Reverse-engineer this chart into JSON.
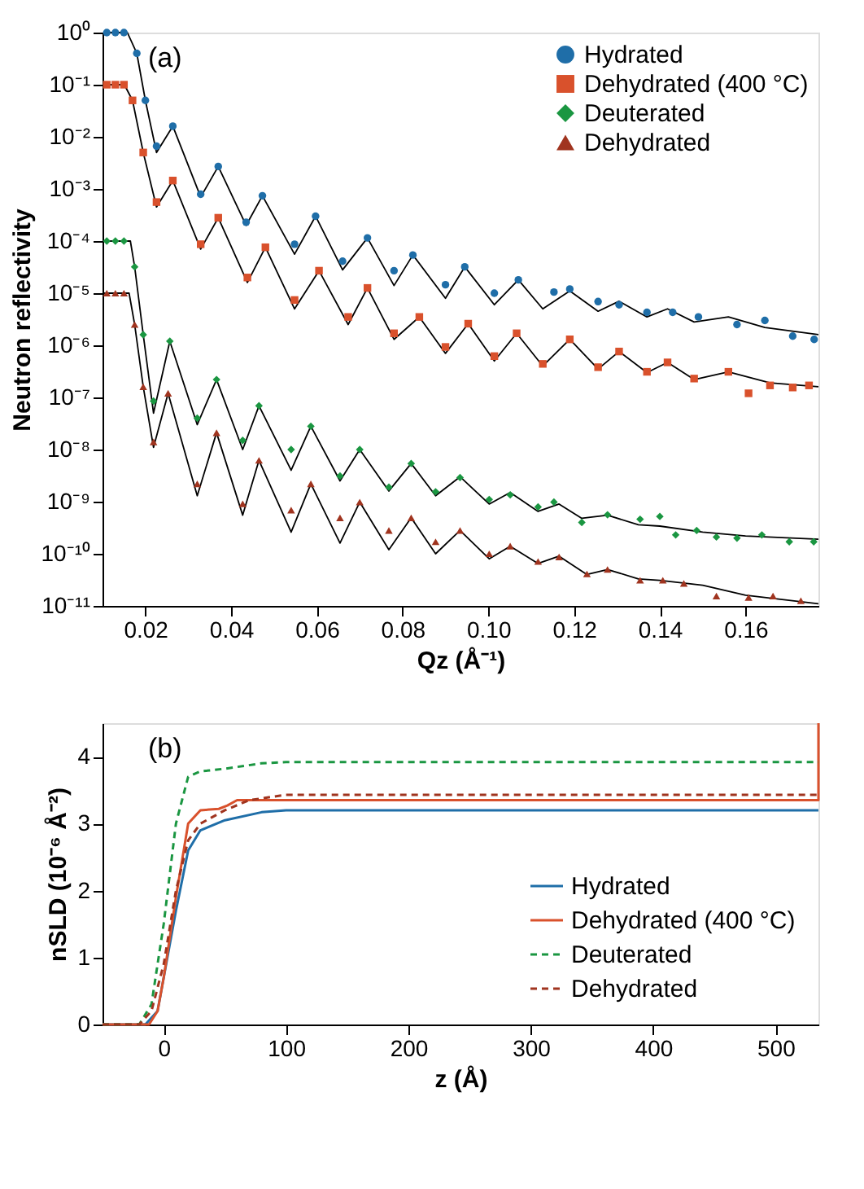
{
  "chart_data": [
    {
      "type": "scatter",
      "annotations": [
        "(a)"
      ],
      "xlabel": "Qz (Å⁻¹)",
      "ylabel": "Neutron reflectivity",
      "log": "y",
      "legend": "top right",
      "xlim": [
        0.01,
        0.177
      ],
      "ylim": [
        1e-11,
        1
      ],
      "xticks": [
        0.02,
        0.04,
        0.06,
        0.08,
        {
          "value": 0.1,
          "label": "0.10"
        },
        0.12,
        0.14,
        0.16
      ],
      "yticks": [
        {
          "value": 1e-11,
          "label": "10⁻¹¹"
        },
        {
          "value": 1e-10,
          "label": "10⁻¹⁰"
        },
        {
          "value": 1e-09,
          "label": "10⁻⁹"
        },
        {
          "value": 1e-08,
          "label": "10⁻⁸"
        },
        {
          "value": 1e-07,
          "label": "10⁻⁷"
        },
        {
          "value": 1e-06,
          "label": "10⁻⁶"
        },
        {
          "value": 1e-05,
          "label": "10⁻⁵"
        },
        {
          "value": 0.0001,
          "label": "10⁻⁴"
        },
        {
          "value": 0.001,
          "label": "10⁻³"
        },
        {
          "value": 0.01,
          "label": "10⁻²"
        },
        {
          "value": 0.1,
          "label": "10⁻¹"
        },
        {
          "value": 1,
          "label": "10⁰"
        }
      ],
      "series": [
        {
          "name": "Hydrated",
          "color": "#1f6ea8",
          "marker": "circle",
          "x": [
            0.011,
            0.013,
            0.015,
            0.018,
            0.02,
            0.0226,
            0.0264,
            0.0329,
            0.037,
            0.0435,
            0.0473,
            0.0548,
            0.0597,
            0.066,
            0.0718,
            0.078,
            0.0824,
            0.09,
            0.0945,
            0.1014,
            0.107,
            0.1153,
            0.119,
            0.1256,
            0.1305,
            0.137,
            0.143,
            0.149,
            0.158,
            0.1645,
            0.171,
            0.176
          ],
          "values": [
            1,
            1,
            1,
            0.4,
            0.05,
            0.0066,
            0.016,
            0.00079,
            0.0027,
            0.00023,
            0.00074,
            8.7e-05,
            0.0003,
            4.1e-05,
            0.000115,
            2.7e-05,
            5.4e-05,
            1.45e-05,
            3.2e-05,
            1e-05,
            1.8e-05,
            1.05e-05,
            1.2e-05,
            6.9e-06,
            6e-06,
            4.3e-06,
            4.3e-06,
            3.5e-06,
            2.5e-06,
            3e-06,
            1.5e-06,
            1.3e-06
          ]
        },
        {
          "name": "Dehydrated (400 °C)",
          "color": "#d9512c",
          "marker": "square",
          "x": [
            0.011,
            0.013,
            0.015,
            0.017,
            0.0195,
            0.0226,
            0.0264,
            0.0329,
            0.037,
            0.0438,
            0.048,
            0.0548,
            0.0605,
            0.0673,
            0.0718,
            0.078,
            0.0839,
            0.09,
            0.0953,
            0.1014,
            0.1066,
            0.1127,
            0.119,
            0.1256,
            0.1305,
            0.137,
            0.1418,
            0.148,
            0.156,
            0.1607,
            0.1657,
            0.171,
            0.1748
          ],
          "values": [
            0.1,
            0.1,
            0.1,
            0.05,
            0.005,
            0.00056,
            0.00145,
            8.7e-05,
            0.00028,
            2e-05,
            7.6e-05,
            7.4e-06,
            2.7e-05,
            3.5e-06,
            1.26e-05,
            1.7e-06,
            3.5e-06,
            9.3e-07,
            2.6e-06,
            6.2e-07,
            1.7e-06,
            4.4e-07,
            1.3e-06,
            3.8e-07,
            7.6e-07,
            3.1e-07,
            4.7e-07,
            2.3e-07,
            3.1e-07,
            1.2e-07,
            1.7e-07,
            1.55e-07,
            1.7e-07
          ]
        },
        {
          "name": "Deuterated",
          "color": "#1a9641",
          "marker": "diamond",
          "x": [
            0.011,
            0.013,
            0.015,
            0.0175,
            0.0195,
            0.0219,
            0.0257,
            0.0321,
            0.0366,
            0.0427,
            0.0465,
            0.054,
            0.0586,
            0.0654,
            0.07,
            0.0768,
            0.082,
            0.0877,
            0.0934,
            0.1002,
            0.1051,
            0.1116,
            0.1153,
            0.1218,
            0.1278,
            0.1354,
            0.14,
            0.1437,
            0.1486,
            0.1532,
            0.158,
            0.1638,
            0.1702,
            0.1759
          ],
          "values": [
            0.0001,
            0.0001,
            0.0001,
            3.2e-05,
            1.6e-06,
            8.5e-08,
            1.2e-06,
            4e-08,
            2.2e-07,
            1.5e-08,
            6.9e-08,
            1e-08,
            2.8e-08,
            3.1e-09,
            1e-08,
            1.9e-09,
            5.4e-09,
            1.55e-09,
            2.9e-09,
            1.1e-09,
            1.35e-09,
            7.9e-10,
            9.8e-10,
            4e-10,
            5.6e-10,
            4.6e-10,
            5.2e-10,
            2.3e-10,
            2.8e-10,
            2.1e-10,
            2e-10,
            2.3e-10,
            1.7e-10,
            1.7e-10
          ]
        },
        {
          "name": "Dehydrated",
          "color": "#a0341f",
          "marker": "triangle",
          "x": [
            0.011,
            0.013,
            0.015,
            0.0175,
            0.0195,
            0.0219,
            0.0253,
            0.0321,
            0.0366,
            0.0427,
            0.0465,
            0.054,
            0.0586,
            0.0654,
            0.07,
            0.0768,
            0.082,
            0.0877,
            0.0934,
            0.1002,
            0.1051,
            0.1116,
            0.1165,
            0.123,
            0.1278,
            0.1354,
            0.1407,
            0.1456,
            0.1532,
            0.1607,
            0.1664,
            0.1729
          ],
          "values": [
            1e-05,
            1e-05,
            1e-05,
            2.5e-06,
            1.6e-07,
            1.4e-08,
            1.2e-07,
            2.2e-09,
            2.1e-08,
            9.1e-10,
            6.2e-09,
            6.9e-10,
            2.2e-09,
            4.9e-10,
            9.8e-10,
            2.8e-10,
            4.9e-10,
            1.7e-10,
            2.8e-10,
            1e-10,
            1.4e-10,
            7.1e-11,
            8.7e-11,
            4.1e-11,
            5e-11,
            3.1e-11,
            3.1e-11,
            2.7e-11,
            1.55e-11,
            1.45e-11,
            1.55e-11,
            1.26e-11
          ]
        },
        {
          "type": "line",
          "color": "#000000",
          "x": [
            0.0102,
            0.0158,
            0.018,
            0.02,
            0.0226,
            0.0264,
            0.0329,
            0.037,
            0.0435,
            0.0473,
            0.0548,
            0.0597,
            0.066,
            0.0718,
            0.078,
            0.0824,
            0.09,
            0.0945,
            0.1014,
            0.107,
            0.1127,
            0.119,
            0.1256,
            0.1305,
            0.137,
            0.1418,
            0.148,
            0.156,
            0.1645,
            0.177
          ],
          "values": [
            1,
            1,
            0.4,
            0.05,
            0.005,
            0.016,
            0.0007,
            0.0027,
            0.0002,
            0.00074,
            5.6e-05,
            0.0003,
            2.8e-05,
            0.000115,
            1.4e-05,
            5.4e-05,
            8e-06,
            3.2e-05,
            6e-06,
            1.8e-05,
            5e-06,
            1.1e-05,
            4.5e-06,
            7e-06,
            3.5e-06,
            5e-06,
            2.8e-06,
            3.5e-06,
            2.2e-06,
            1.6e-06
          ]
        },
        {
          "type": "line",
          "color": "#000000",
          "x": [
            0.0102,
            0.0151,
            0.017,
            0.0195,
            0.0226,
            0.0264,
            0.0329,
            0.037,
            0.0438,
            0.048,
            0.0548,
            0.0605,
            0.0673,
            0.0718,
            0.078,
            0.0839,
            0.09,
            0.0953,
            0.1014,
            0.1066,
            0.1127,
            0.119,
            0.1256,
            0.1305,
            0.137,
            0.1418,
            0.148,
            0.156,
            0.1657,
            0.177
          ],
          "values": [
            0.1,
            0.1,
            0.05,
            0.005,
            0.00045,
            0.00145,
            7e-05,
            0.00028,
            1.6e-05,
            7.6e-05,
            5e-06,
            2.7e-05,
            2.5e-06,
            1.26e-05,
            1.3e-06,
            3.5e-06,
            7e-07,
            2.6e-06,
            5e-07,
            1.7e-06,
            4e-07,
            1.3e-06,
            3.5e-07,
            7.6e-07,
            3e-07,
            4.7e-07,
            2.2e-07,
            3.1e-07,
            1.9e-07,
            1.6e-07
          ]
        },
        {
          "type": "line",
          "color": "#000000",
          "x": [
            0.0102,
            0.0165,
            0.0175,
            0.0195,
            0.0219,
            0.0257,
            0.0321,
            0.0366,
            0.0427,
            0.0465,
            0.054,
            0.0586,
            0.0654,
            0.07,
            0.0768,
            0.082,
            0.0877,
            0.0934,
            0.1002,
            0.1051,
            0.1116,
            0.1165,
            0.1218,
            0.1278,
            0.135,
            0.14,
            0.15,
            0.16,
            0.177
          ],
          "values": [
            0.0001,
            0.0001,
            3.2e-05,
            1.6e-06,
            5e-08,
            1.2e-06,
            3e-08,
            2.2e-07,
            1e-08,
            6.9e-08,
            4e-09,
            2.8e-08,
            2.5e-09,
            1e-08,
            1.6e-09,
            5.4e-09,
            1.3e-09,
            3e-09,
            9e-10,
            1.5e-09,
            6.5e-10,
            9e-10,
            4.8e-10,
            5.5e-10,
            3.6e-10,
            3.4e-10,
            2.6e-10,
            2.2e-10,
            1.9e-10
          ]
        },
        {
          "type": "line",
          "color": "#000000",
          "x": [
            0.0102,
            0.0162,
            0.0175,
            0.0195,
            0.0219,
            0.0253,
            0.0321,
            0.0366,
            0.0427,
            0.0465,
            0.054,
            0.0586,
            0.0654,
            0.07,
            0.0768,
            0.082,
            0.0877,
            0.0934,
            0.1002,
            0.1051,
            0.1116,
            0.1165,
            0.123,
            0.1278,
            0.135,
            0.14,
            0.15,
            0.16,
            0.177
          ],
          "values": [
            1e-05,
            1e-05,
            2.5e-06,
            1.6e-07,
            1.1e-08,
            1.2e-07,
            1.3e-09,
            2.1e-08,
            5.5e-10,
            6.2e-09,
            2.6e-10,
            2.2e-09,
            1.6e-10,
            9.8e-10,
            1.2e-10,
            4.9e-10,
            1e-10,
            2.8e-10,
            8e-11,
            1.4e-10,
            6.5e-11,
            9e-11,
            4e-11,
            5e-11,
            3.3e-11,
            3.1e-11,
            2.5e-11,
            1.6e-11,
            1.1e-11
          ]
        }
      ]
    },
    {
      "type": "line",
      "annotations": [
        "(b)"
      ],
      "xlabel": "z (Å)",
      "ylabel": "nSLD (10⁻⁶ Å⁻²)",
      "legend": "bottom right",
      "xlim": [
        -50,
        535
      ],
      "ylim": [
        0,
        4.5
      ],
      "xticks": [
        0,
        100,
        200,
        300,
        400,
        500
      ],
      "yticks": [
        0,
        1,
        2,
        3,
        4
      ],
      "series": [
        {
          "name": "Hydrated",
          "color": "#1f6ea8",
          "line_style": "solid",
          "x": [
            -50,
            -15,
            -5,
            0,
            10,
            20,
            30,
            50,
            80,
            100,
            535
          ],
          "values": [
            0,
            0,
            0.2,
            0.7,
            1.7,
            2.6,
            2.9,
            3.05,
            3.17,
            3.2,
            3.2
          ]
        },
        {
          "name": "Dehydrated (400 °C)",
          "color": "#d9512c",
          "line_style": "solid",
          "x": [
            -50,
            -12,
            -5,
            0,
            10,
            20,
            30,
            45,
            52,
            60,
            535,
            535
          ],
          "values": [
            0,
            0,
            0.2,
            0.7,
            1.9,
            3.0,
            3.2,
            3.22,
            3.27,
            3.35,
            3.35,
            4.5
          ]
        },
        {
          "name": "Deuterated",
          "color": "#1a9641",
          "line_style": "dashed",
          "x": [
            -50,
            -20,
            -10,
            0,
            10,
            20,
            30,
            50,
            80,
            100,
            535
          ],
          "values": [
            0,
            0,
            0.3,
            1.5,
            3.0,
            3.7,
            3.78,
            3.82,
            3.9,
            3.92,
            3.92
          ]
        },
        {
          "name": "Dehydrated",
          "color": "#a0341f",
          "line_style": "dashed",
          "x": [
            -50,
            -20,
            -10,
            0,
            10,
            20,
            30,
            50,
            70,
            100,
            535
          ],
          "values": [
            0,
            0,
            0.2,
            0.9,
            2.0,
            2.75,
            3.0,
            3.2,
            3.35,
            3.43,
            3.43
          ]
        }
      ]
    }
  ]
}
